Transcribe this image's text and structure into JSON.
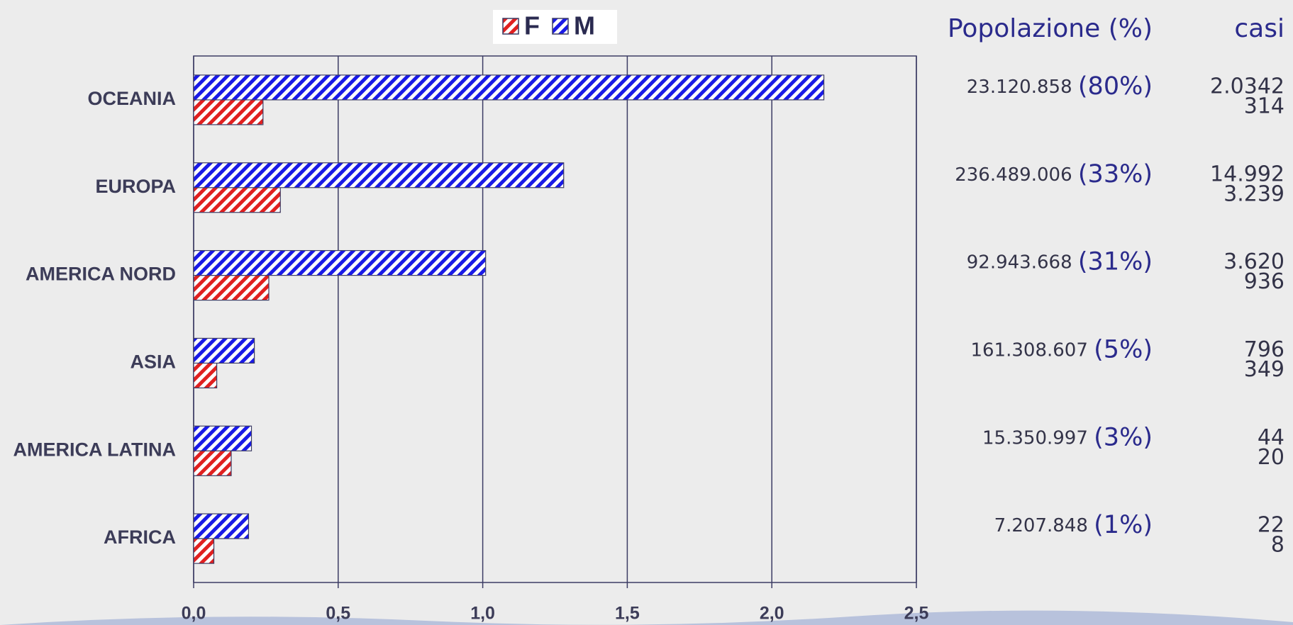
{
  "chart_data": {
    "type": "bar",
    "orientation": "horizontal",
    "categories": [
      "OCEANIA",
      "EUROPA",
      "AMERICA NORD",
      "ASIA",
      "AMERICA LATINA",
      "AFRICA"
    ],
    "series": [
      {
        "name": "F",
        "color": "#e02020",
        "values": [
          0.24,
          0.3,
          0.26,
          0.08,
          0.13,
          0.07
        ]
      },
      {
        "name": "M",
        "color": "#1a1ae6",
        "values": [
          2.18,
          1.28,
          1.01,
          0.21,
          0.2,
          0.19
        ]
      }
    ],
    "xlim": [
      0,
      2.5
    ],
    "xticks": [
      {
        "value": 0,
        "label": "0,0"
      },
      {
        "value": 0.5,
        "label": "0,5"
      },
      {
        "value": 1,
        "label": "1,0"
      },
      {
        "value": 1.5,
        "label": "1,5"
      },
      {
        "value": 2,
        "label": "2,0"
      },
      {
        "value": 2.5,
        "label": "2,5"
      }
    ],
    "grid": true,
    "legend": "top"
  },
  "side_table": {
    "headers": [
      "Popolazione (%)",
      "casi"
    ],
    "rows": [
      {
        "population": "23.120.858",
        "share": "(80%)",
        "cases": [
          "2.0342",
          "314"
        ]
      },
      {
        "population": "236.489.006",
        "share": "(33%)",
        "cases": [
          "14.992",
          "3.239"
        ]
      },
      {
        "population": "92.943.668",
        "share": "(31%)",
        "cases": [
          "3.620",
          "936"
        ]
      },
      {
        "population": "161.308.607",
        "share": "(5%)",
        "cases": [
          "796",
          "349"
        ]
      },
      {
        "population": "15.350.997",
        "share": "(3%)",
        "cases": [
          "44",
          "20"
        ]
      },
      {
        "population": "7.207.848",
        "share": "(1%)",
        "cases": [
          "22",
          "8"
        ]
      }
    ]
  }
}
